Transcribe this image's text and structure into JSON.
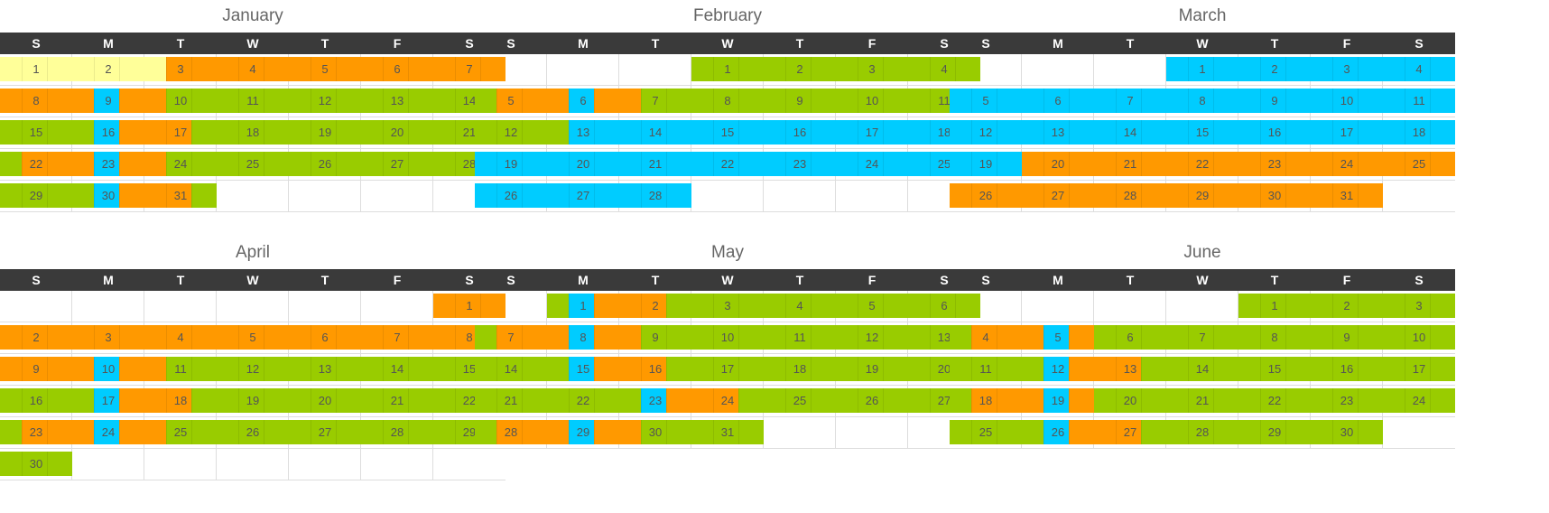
{
  "weekday_labels": [
    "S",
    "M",
    "T",
    "W",
    "T",
    "F",
    "S"
  ],
  "colors": {
    "header_bg": "#3a3a3a",
    "green": "#99cc00",
    "orange": "#ff9900",
    "blue": "#00ccff",
    "yellow": "#ffff99"
  },
  "months": [
    {
      "name": "January",
      "start_weekday": 0,
      "days": 31,
      "segments": [
        {
          "from": [
            1,
            0.0
          ],
          "to": [
            3,
            0.3
          ],
          "color": "yellow"
        },
        {
          "from": [
            3,
            0.3
          ],
          "to": [
            9,
            0.3
          ],
          "color": "orange"
        },
        {
          "from": [
            9,
            0.3
          ],
          "to": [
            9,
            0.65
          ],
          "color": "blue"
        },
        {
          "from": [
            9,
            0.65
          ],
          "to": [
            10,
            0.3
          ],
          "color": "orange"
        },
        {
          "from": [
            10,
            0.3
          ],
          "to": [
            16,
            0.3
          ],
          "color": "green"
        },
        {
          "from": [
            16,
            0.3
          ],
          "to": [
            16,
            0.65
          ],
          "color": "blue"
        },
        {
          "from": [
            16,
            0.65
          ],
          "to": [
            17,
            0.65
          ],
          "color": "orange"
        },
        {
          "from": [
            17,
            0.65
          ],
          "to": [
            22,
            0.3
          ],
          "color": "green"
        },
        {
          "from": [
            22,
            0.3
          ],
          "to": [
            23,
            0.3
          ],
          "color": "orange"
        },
        {
          "from": [
            23,
            0.3
          ],
          "to": [
            23,
            0.65
          ],
          "color": "blue"
        },
        {
          "from": [
            23,
            0.65
          ],
          "to": [
            24,
            0.3
          ],
          "color": "orange"
        },
        {
          "from": [
            24,
            0.3
          ],
          "to": [
            30,
            0.3
          ],
          "color": "green"
        },
        {
          "from": [
            30,
            0.3
          ],
          "to": [
            30,
            0.65
          ],
          "color": "blue"
        },
        {
          "from": [
            30,
            0.65
          ],
          "to": [
            31,
            0.65
          ],
          "color": "orange"
        },
        {
          "from": [
            31,
            0.65
          ],
          "to": [
            32,
            0.0
          ],
          "color": "green"
        }
      ]
    },
    {
      "name": "February",
      "start_weekday": 3,
      "days": 28,
      "segments": [
        {
          "from": [
            1,
            0.0
          ],
          "to": [
            5,
            0.3
          ],
          "color": "green"
        },
        {
          "from": [
            5,
            0.3
          ],
          "to": [
            6,
            0.3
          ],
          "color": "orange"
        },
        {
          "from": [
            6,
            0.3
          ],
          "to": [
            6,
            0.65
          ],
          "color": "blue"
        },
        {
          "from": [
            6,
            0.65
          ],
          "to": [
            7,
            0.3
          ],
          "color": "orange"
        },
        {
          "from": [
            7,
            0.3
          ],
          "to": [
            13,
            0.3
          ],
          "color": "green"
        },
        {
          "from": [
            13,
            0.3
          ],
          "to": [
            29,
            0.0
          ],
          "color": "blue"
        }
      ]
    },
    {
      "name": "March",
      "start_weekday": 3,
      "days": 31,
      "segments": [
        {
          "from": [
            1,
            0.0
          ],
          "to": [
            20,
            0.0
          ],
          "color": "blue"
        },
        {
          "from": [
            20,
            0.0
          ],
          "to": [
            32,
            0.0
          ],
          "color": "orange"
        }
      ]
    },
    {
      "name": "April",
      "start_weekday": 6,
      "days": 30,
      "segments": [
        {
          "from": [
            1,
            0.0
          ],
          "to": [
            11,
            0.3
          ],
          "color": "orange"
        },
        {
          "from": [
            10,
            0.3
          ],
          "to": [
            10,
            0.65
          ],
          "color": "blue"
        },
        {
          "from": [
            11,
            0.3
          ],
          "to": [
            17,
            0.3
          ],
          "color": "green"
        },
        {
          "from": [
            17,
            0.3
          ],
          "to": [
            17,
            0.65
          ],
          "color": "blue"
        },
        {
          "from": [
            17,
            0.65
          ],
          "to": [
            18,
            0.65
          ],
          "color": "orange"
        },
        {
          "from": [
            18,
            0.65
          ],
          "to": [
            23,
            0.3
          ],
          "color": "green"
        },
        {
          "from": [
            23,
            0.3
          ],
          "to": [
            24,
            0.3
          ],
          "color": "orange"
        },
        {
          "from": [
            24,
            0.3
          ],
          "to": [
            24,
            0.65
          ],
          "color": "blue"
        },
        {
          "from": [
            24,
            0.65
          ],
          "to": [
            25,
            0.3
          ],
          "color": "orange"
        },
        {
          "from": [
            25,
            0.3
          ],
          "to": [
            31,
            0.0
          ],
          "color": "green"
        }
      ]
    },
    {
      "name": "May",
      "start_weekday": 1,
      "days": 31,
      "segments": [
        {
          "from": [
            1,
            0.0
          ],
          "to": [
            1,
            0.3
          ],
          "color": "green"
        },
        {
          "from": [
            1,
            0.3
          ],
          "to": [
            1,
            0.65
          ],
          "color": "blue"
        },
        {
          "from": [
            1,
            0.65
          ],
          "to": [
            2,
            0.65
          ],
          "color": "orange"
        },
        {
          "from": [
            2,
            0.65
          ],
          "to": [
            7,
            0.3
          ],
          "color": "green"
        },
        {
          "from": [
            7,
            0.3
          ],
          "to": [
            8,
            0.3
          ],
          "color": "orange"
        },
        {
          "from": [
            8,
            0.3
          ],
          "to": [
            8,
            0.65
          ],
          "color": "blue"
        },
        {
          "from": [
            8,
            0.65
          ],
          "to": [
            9,
            0.3
          ],
          "color": "orange"
        },
        {
          "from": [
            9,
            0.3
          ],
          "to": [
            15,
            0.3
          ],
          "color": "green"
        },
        {
          "from": [
            15,
            0.3
          ],
          "to": [
            15,
            0.65
          ],
          "color": "blue"
        },
        {
          "from": [
            15,
            0.65
          ],
          "to": [
            16,
            0.65
          ],
          "color": "orange"
        },
        {
          "from": [
            16,
            0.65
          ],
          "to": [
            23,
            0.3
          ],
          "color": "green"
        },
        {
          "from": [
            23,
            0.3
          ],
          "to": [
            23,
            0.65
          ],
          "color": "blue"
        },
        {
          "from": [
            23,
            0.65
          ],
          "to": [
            24,
            0.65
          ],
          "color": "orange"
        },
        {
          "from": [
            24,
            0.65
          ],
          "to": [
            28,
            0.3
          ],
          "color": "green"
        },
        {
          "from": [
            28,
            0.3
          ],
          "to": [
            29,
            0.3
          ],
          "color": "orange"
        },
        {
          "from": [
            29,
            0.3
          ],
          "to": [
            29,
            0.65
          ],
          "color": "blue"
        },
        {
          "from": [
            29,
            0.65
          ],
          "to": [
            30,
            0.3
          ],
          "color": "orange"
        },
        {
          "from": [
            30,
            0.3
          ],
          "to": [
            32,
            0.0
          ],
          "color": "green"
        }
      ]
    },
    {
      "name": "June",
      "start_weekday": 4,
      "days": 30,
      "segments": [
        {
          "from": [
            1,
            0.0
          ],
          "to": [
            4,
            0.3
          ],
          "color": "green"
        },
        {
          "from": [
            4,
            0.3
          ],
          "to": [
            5,
            0.3
          ],
          "color": "orange"
        },
        {
          "from": [
            5,
            0.3
          ],
          "to": [
            5,
            0.65
          ],
          "color": "blue"
        },
        {
          "from": [
            5,
            0.65
          ],
          "to": [
            6,
            0.0
          ],
          "color": "orange"
        },
        {
          "from": [
            6,
            0.0
          ],
          "to": [
            11,
            0.3
          ],
          "color": "green"
        },
        {
          "from": [
            11,
            0.3
          ],
          "to": [
            12,
            0.3
          ],
          "color": "green"
        },
        {
          "from": [
            12,
            0.3
          ],
          "to": [
            12,
            0.65
          ],
          "color": "blue"
        },
        {
          "from": [
            12,
            0.65
          ],
          "to": [
            13,
            0.65
          ],
          "color": "orange"
        },
        {
          "from": [
            13,
            0.65
          ],
          "to": [
            18,
            0.3
          ],
          "color": "green"
        },
        {
          "from": [
            18,
            0.3
          ],
          "to": [
            19,
            0.3
          ],
          "color": "orange"
        },
        {
          "from": [
            19,
            0.3
          ],
          "to": [
            19,
            0.65
          ],
          "color": "blue"
        },
        {
          "from": [
            19,
            0.65
          ],
          "to": [
            20,
            0.0
          ],
          "color": "orange"
        },
        {
          "from": [
            20,
            0.0
          ],
          "to": [
            26,
            0.3
          ],
          "color": "green"
        },
        {
          "from": [
            26,
            0.3
          ],
          "to": [
            26,
            0.65
          ],
          "color": "blue"
        },
        {
          "from": [
            26,
            0.65
          ],
          "to": [
            27,
            0.65
          ],
          "color": "orange"
        },
        {
          "from": [
            27,
            0.65
          ],
          "to": [
            31,
            0.0
          ],
          "color": "green"
        }
      ]
    }
  ]
}
